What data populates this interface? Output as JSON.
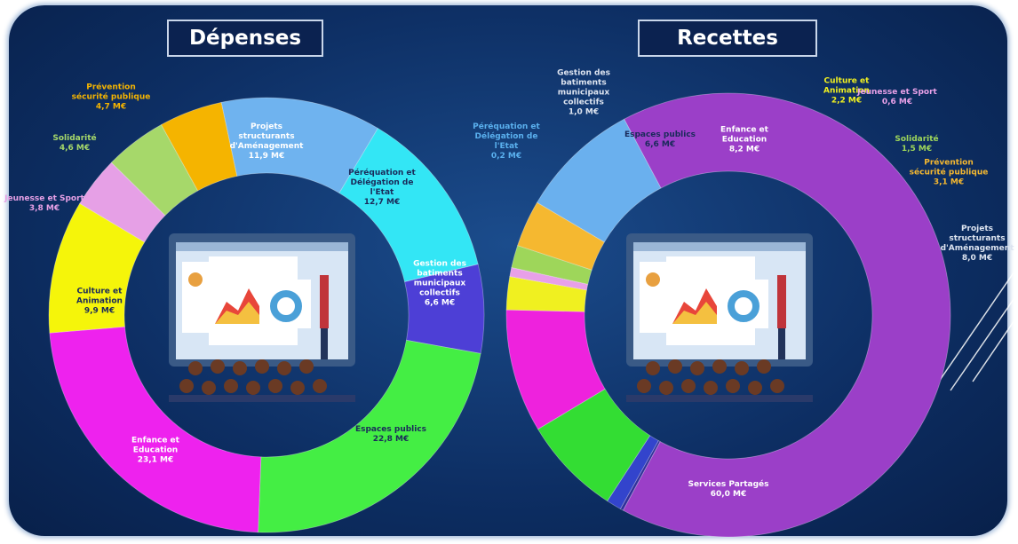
{
  "chart_data": [
    {
      "type": "donut",
      "title": "Dépenses",
      "categories": [
        "Projets structurants d'Aménagement",
        "Péréquation et Délégation de l'Etat",
        "Gestion des batiments municipaux collectifs",
        "Espaces publics",
        "Enfance et Education",
        "Culture et Animation",
        "Jeunesse et Sport",
        "Solidarité",
        "Prévention sécurité publique"
      ],
      "values": [
        11.9,
        12.7,
        6.6,
        22.8,
        23.1,
        9.9,
        3.8,
        4.6,
        4.7
      ],
      "value_labels": [
        "11,9 M€",
        "12,7 M€",
        "6,6 M€",
        "22,8 M€",
        "23,1 M€",
        "9,9 M€",
        "3,8 M€",
        "4,6 M€",
        "4,7 M€"
      ],
      "colors": [
        "#6fb3ef",
        "#33e6f5",
        "#4d3fd6",
        "#44ee44",
        "#ee22ee",
        "#f5f50a",
        "#e6a0e6",
        "#a6d86a",
        "#f5b400"
      ]
    },
    {
      "type": "donut",
      "title": "Recettes",
      "categories": [
        "Services Partagés",
        "Péréquation et Délégation de l'Etat",
        "Gestion des batiments municipaux collectifs",
        "Espaces publics",
        "Enfance et Education",
        "Culture et Animation",
        "Jeunesse et Sport",
        "Solidarité",
        "Prévention sécurité publique",
        "Projets structurants d'Aménagement"
      ],
      "values": [
        60.0,
        0.2,
        1.0,
        6.6,
        8.2,
        2.2,
        0.6,
        1.5,
        3.1,
        8.0
      ],
      "value_labels": [
        "60,0 M€",
        "0,2 M€",
        "1,0 M€",
        "6,6 M€",
        "8,2 M€",
        "2,2 M€",
        "0,6 M€",
        "1,5 M€",
        "3,1 M€",
        "8,0 M€"
      ],
      "colors": [
        "#9b3fc8",
        "#2f2f9a",
        "#3344cc",
        "#33dd33",
        "#ee22dd",
        "#f0f020",
        "#e8a0e8",
        "#9ed65a",
        "#f5b830",
        "#6ab0ee"
      ]
    }
  ]
}
